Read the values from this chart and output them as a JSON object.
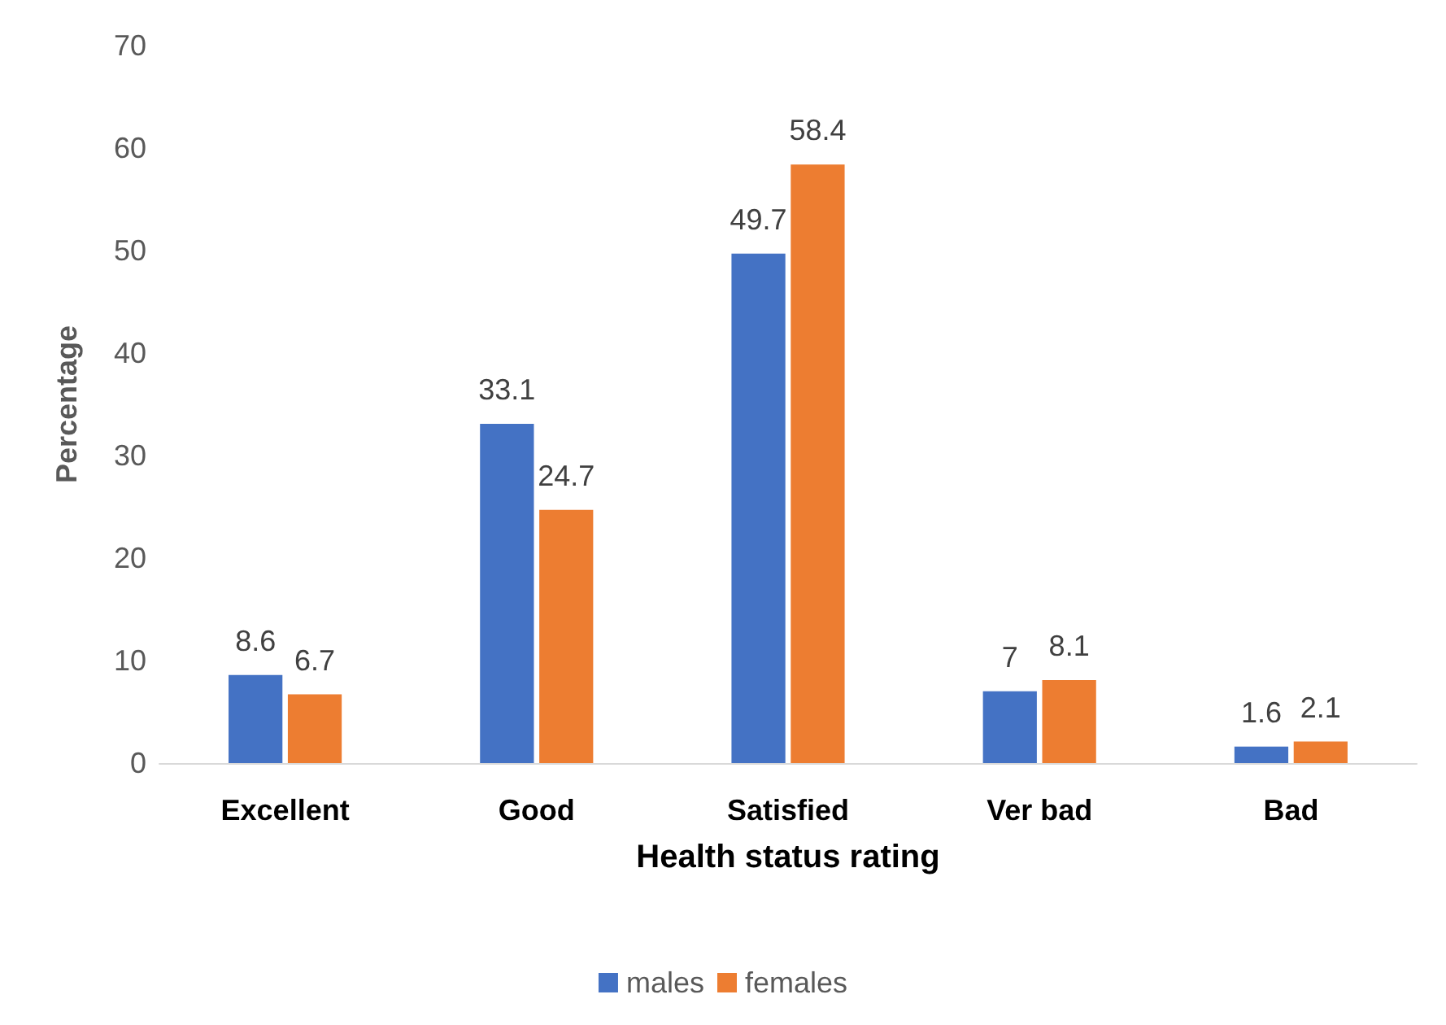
{
  "chart_data": {
    "type": "bar",
    "xlabel": "Health status rating",
    "ylabel": "Percentage",
    "categories": [
      "Excellent",
      "Good",
      "Satisfied",
      "Ver bad",
      "Bad"
    ],
    "series": [
      {
        "name": "males",
        "color": "#4472c4",
        "values": [
          8.6,
          33.1,
          49.7,
          7,
          1.6
        ]
      },
      {
        "name": "females",
        "color": "#ed7d31",
        "values": [
          6.7,
          24.7,
          58.4,
          8.1,
          2.1
        ]
      }
    ],
    "ylim": [
      0,
      70
    ],
    "yticks": [
      0,
      10,
      20,
      30,
      40,
      50,
      60,
      70
    ],
    "grid": false,
    "legend": "bottom",
    "data_labels": true
  }
}
